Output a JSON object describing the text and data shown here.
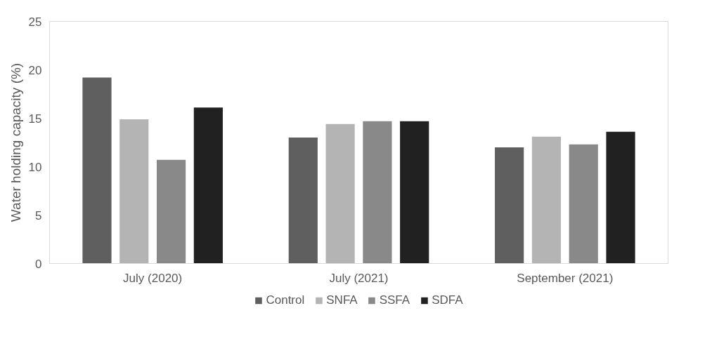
{
  "chart_data": {
    "type": "bar",
    "ylabel": "Water holding capacity (%)",
    "categories": [
      "July (2020)",
      "July (2021)",
      "September (2021)"
    ],
    "series": [
      {
        "name": "Control",
        "color": "#5f5f5f",
        "values": [
          19.2,
          13.0,
          12.0
        ]
      },
      {
        "name": "SNFA",
        "color": "#b4b4b4",
        "values": [
          14.9,
          14.4,
          13.1
        ]
      },
      {
        "name": "SSFA",
        "color": "#898989",
        "values": [
          10.7,
          14.7,
          12.3
        ]
      },
      {
        "name": "SDFA",
        "color": "#212121",
        "values": [
          16.1,
          14.7,
          13.6
        ]
      }
    ],
    "ylim": [
      0,
      25
    ],
    "yticks": [
      0,
      5,
      10,
      15,
      20,
      25
    ],
    "grid": false,
    "legend": "bottom"
  }
}
